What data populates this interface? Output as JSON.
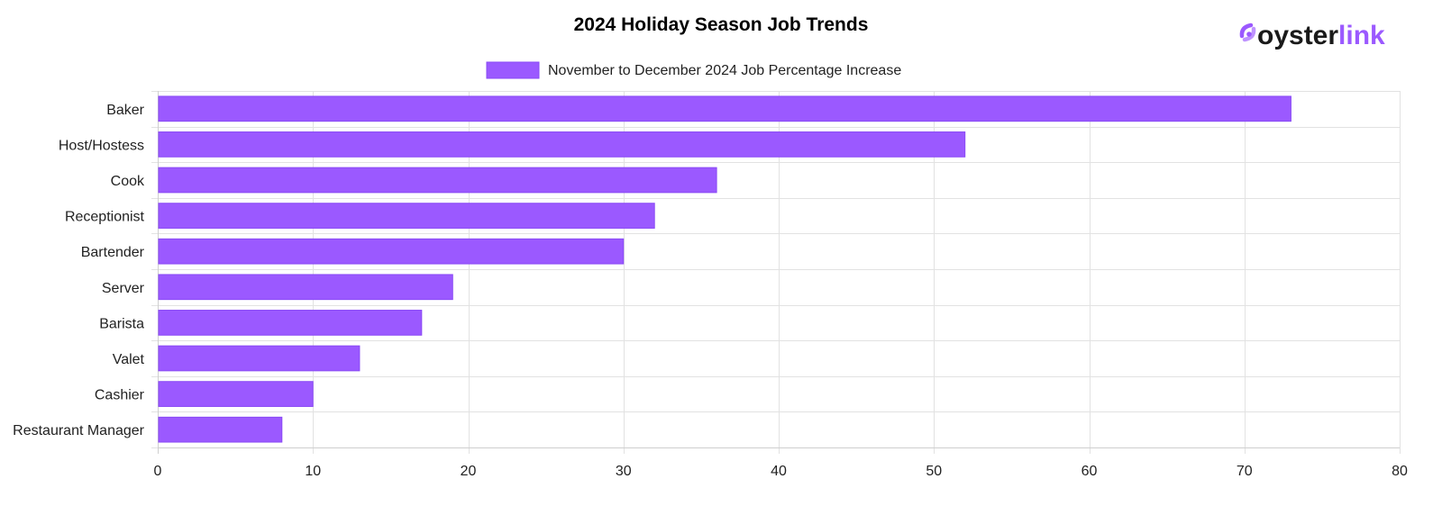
{
  "logo": {
    "text_part1": "oyster",
    "text_part2": "link",
    "color_dark": "#1a1a1a",
    "color_accent": "#9b59ff"
  },
  "chart_data": {
    "type": "bar",
    "orientation": "horizontal",
    "title": "2024 Holiday Season Job Trends",
    "xlabel": "",
    "ylabel": "",
    "categories": [
      "Baker",
      "Host/Hostess",
      "Cook",
      "Receptionist",
      "Bartender",
      "Server",
      "Barista",
      "Valet",
      "Cashier",
      "Restaurant Manager"
    ],
    "series": [
      {
        "name": "November to December 2024 Job Percentage Increase",
        "values": [
          73,
          52,
          36,
          32,
          30,
          19,
          17,
          13,
          10,
          8
        ],
        "color": "#9b59ff",
        "border_color": "#8a4af5"
      }
    ],
    "xlim": [
      0,
      80
    ],
    "xticks": [
      0,
      10,
      20,
      30,
      40,
      50,
      60,
      70,
      80
    ],
    "grid": true,
    "legend_position": "top"
  }
}
